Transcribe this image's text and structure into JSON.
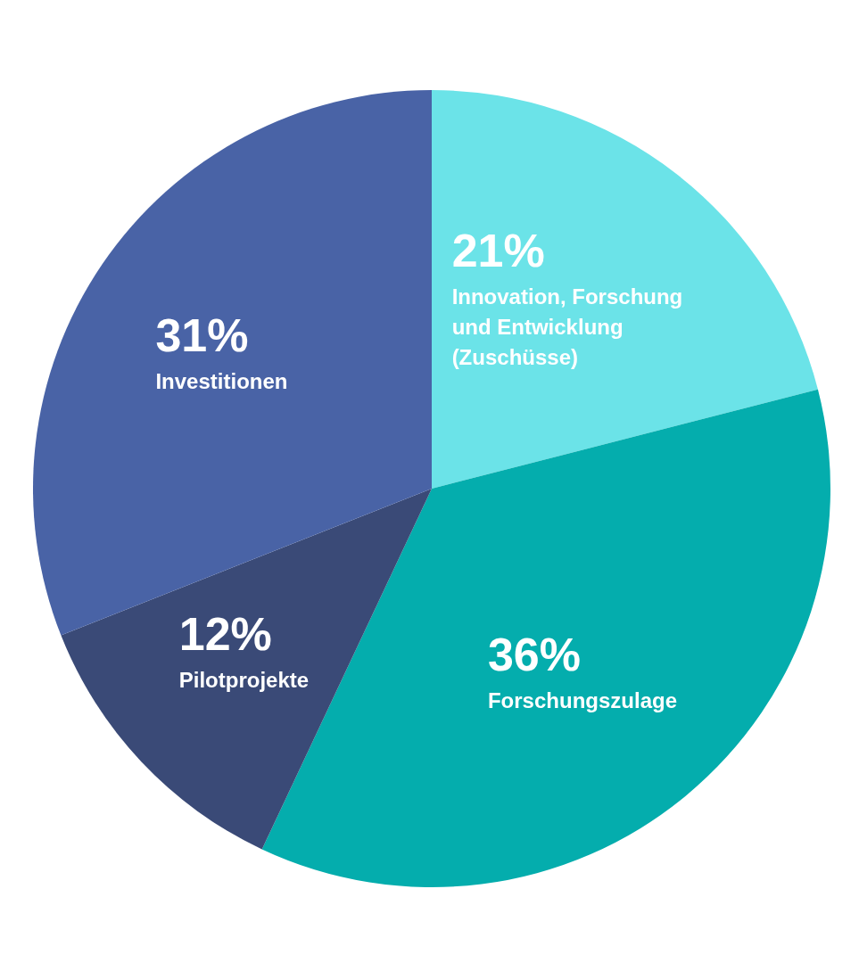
{
  "chart_data": {
    "type": "pie",
    "categories": [
      "Innovation, Forschung und Entwicklung (Zuschüsse)",
      "Forschungszulage",
      "Pilotprojekte",
      "Investitionen"
    ],
    "values": [
      21,
      36,
      12,
      31
    ],
    "value_labels": [
      "21%",
      "36%",
      "12%",
      "31%"
    ],
    "colors": [
      "#6be3e8",
      "#04adad",
      "#3a4a77",
      "#4963a6"
    ]
  }
}
